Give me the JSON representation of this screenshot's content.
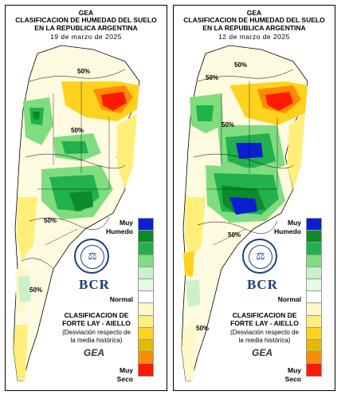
{
  "header": {
    "org": "GEA",
    "title_line1": "CLASIFICACION DE HUMEDAD DEL SUELO",
    "title_line2": "EN LA REPUBLICA ARGENTINA"
  },
  "panels": [
    {
      "date": "19 de marzo de 2025",
      "contour_labels": [
        "50%",
        "50%",
        "50%",
        "50%"
      ]
    },
    {
      "date": "12 de marzo de 2025",
      "contour_labels": [
        "50%",
        "50%",
        "50%",
        "50%",
        "50%"
      ]
    }
  ],
  "legend": {
    "top_label_1": "Muy",
    "top_label_2": "Humedo",
    "mid_label": "Normal",
    "bottom_label_1": "Muy",
    "bottom_label_2": "Seco",
    "colors": [
      "#0a1fd0",
      "#0c8a2c",
      "#22b14c",
      "#7fdd7f",
      "#c9f2c9",
      "#e6fae6",
      "#ffffff",
      "#fff8c8",
      "#ffef7a",
      "#ffd21e",
      "#e6b800",
      "#ff8c00",
      "#ff1a00"
    ]
  },
  "brand": {
    "name": "BCR",
    "seal_text": "BOLSA DE COMERCIO DE ROSARIO",
    "classification_line1": "CLASIFICACION DE",
    "classification_line2": "FORTE LAY - AIELLO",
    "note_line1": "(Desviación respecto de",
    "note_line2": "la media histórica)",
    "mark": "GEA"
  }
}
